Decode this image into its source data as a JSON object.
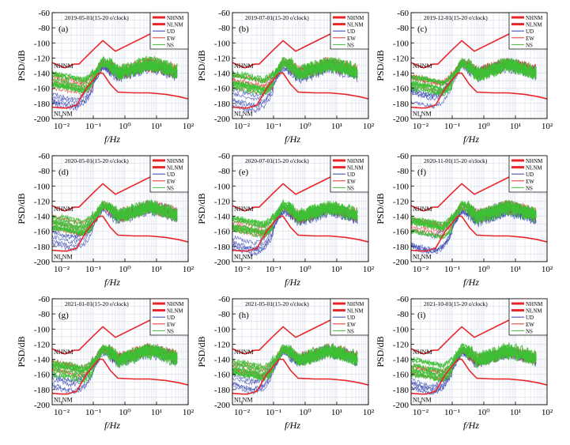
{
  "colors": {
    "nhnm": "#e8262a",
    "nlnm": "#e8262a",
    "ud": "#2f3fb0",
    "ew": "#e0302a",
    "ns": "#3dbf35",
    "grid": "#d8dcea",
    "axis": "#000000"
  },
  "chart_data": [
    {
      "type": "line",
      "panel": "(a)",
      "title": "2019-05-01(15-20 o'clock)",
      "xlabel": "f/Hz",
      "ylabel": "PSD/dB",
      "xscale": "log",
      "xlim": [
        0.005,
        100
      ],
      "ylim": [
        -200,
        -60
      ],
      "xticks": [
        "10⁻²",
        "10⁻¹",
        "10⁰",
        "10¹",
        "10²"
      ],
      "yticks": [
        "-60",
        "-80",
        "-100",
        "-120",
        "-140",
        "-160",
        "-180",
        "-200"
      ],
      "legend": [
        "NHNM",
        "NLNM",
        "UD",
        "EW",
        "NS"
      ],
      "legend_position": "top-right",
      "annotations": [
        "NHNM",
        "NLNM"
      ],
      "seed": 11,
      "grid": true
    },
    {
      "type": "line",
      "panel": "(b)",
      "title": "2019-07-01(15-20 o'clock)",
      "xlabel": "f/Hz",
      "ylabel": "PSD/dB",
      "xscale": "log",
      "xlim": [
        0.005,
        100
      ],
      "ylim": [
        -200,
        -60
      ],
      "xticks": [
        "10⁻²",
        "10⁻¹",
        "10⁰",
        "10¹",
        "10²"
      ],
      "yticks": [
        "-60",
        "-80",
        "-100",
        "-120",
        "-140",
        "-160",
        "-180",
        "-200"
      ],
      "legend": [
        "NHNM",
        "NLNM",
        "UD",
        "EW",
        "NS"
      ],
      "legend_position": "top-right",
      "annotations": [
        "NHNM",
        "NLNM"
      ],
      "seed": 23,
      "grid": true
    },
    {
      "type": "line",
      "panel": "(c)",
      "title": "2019-12-01(15-20 o'clock)",
      "xlabel": "f/Hz",
      "ylabel": "PSD/dB",
      "xscale": "log",
      "xlim": [
        0.005,
        100
      ],
      "ylim": [
        -200,
        -60
      ],
      "xticks": [
        "10⁻²",
        "10⁻¹",
        "10⁰",
        "10¹",
        "10²"
      ],
      "yticks": [
        "-60",
        "-80",
        "-100",
        "-120",
        "-140",
        "-160",
        "-180",
        "-200"
      ],
      "legend": [
        "NHNM",
        "NLNM",
        "UD",
        "EW",
        "NS"
      ],
      "legend_position": "top-right",
      "annotations": [
        "NHNM",
        "NLNM"
      ],
      "seed": 37,
      "grid": true
    },
    {
      "type": "line",
      "panel": "(d)",
      "title": "2020-05-01(15-20 o'clock)",
      "xlabel": "f/Hz",
      "ylabel": "PSD/dB",
      "xscale": "log",
      "xlim": [
        0.005,
        100
      ],
      "ylim": [
        -200,
        -60
      ],
      "xticks": [
        "10⁻²",
        "10⁻¹",
        "10⁰",
        "10¹",
        "10²"
      ],
      "yticks": [
        "-60",
        "-80",
        "-100",
        "-120",
        "-140",
        "-160",
        "-180",
        "-200"
      ],
      "legend": [
        "NHNM",
        "NLNM",
        "UD",
        "EW",
        "NS"
      ],
      "legend_position": "top-right",
      "annotations": [
        "NHNM",
        "NLNM"
      ],
      "seed": 41,
      "grid": true
    },
    {
      "type": "line",
      "panel": "(e)",
      "title": "2020-07-01(15-20 o'clock)",
      "xlabel": "f/Hz",
      "ylabel": "PSD/dB",
      "xscale": "log",
      "xlim": [
        0.005,
        100
      ],
      "ylim": [
        -200,
        -60
      ],
      "xticks": [
        "10⁻²",
        "10⁻¹",
        "10⁰",
        "10¹",
        "10²"
      ],
      "yticks": [
        "-60",
        "-80",
        "-100",
        "-120",
        "-140",
        "-160",
        "-180",
        "-200"
      ],
      "legend": [
        "NHNM",
        "NLNM",
        "UD",
        "EW",
        "NS"
      ],
      "legend_position": "top-right",
      "annotations": [
        "NHNM",
        "NLNM"
      ],
      "seed": 53,
      "grid": true
    },
    {
      "type": "line",
      "panel": "(f)",
      "title": "2020-11-01(15-20 o'clock)",
      "xlabel": "f/Hz",
      "ylabel": "PSD/dB",
      "xscale": "log",
      "xlim": [
        0.005,
        100
      ],
      "ylim": [
        -200,
        -60
      ],
      "xticks": [
        "10⁻²",
        "10⁻¹",
        "10⁰",
        "10¹",
        "10²"
      ],
      "yticks": [
        "-60",
        "-80",
        "-100",
        "-120",
        "-140",
        "-160",
        "-180",
        "-200"
      ],
      "legend": [
        "NHNM",
        "NLNM",
        "UD",
        "EW",
        "NS"
      ],
      "legend_position": "top-right",
      "annotations": [
        "NHNM",
        "NLNM"
      ],
      "seed": 67,
      "grid": true
    },
    {
      "type": "line",
      "panel": "(g)",
      "title": "2021-01-01(15-20 o'clock)",
      "xlabel": "f/Hz",
      "ylabel": "PSD/dB",
      "xscale": "log",
      "xlim": [
        0.005,
        100
      ],
      "ylim": [
        -200,
        -60
      ],
      "xticks": [
        "10⁻²",
        "10⁻¹",
        "10⁰",
        "10¹",
        "10²"
      ],
      "yticks": [
        "-60",
        "-80",
        "-100",
        "-120",
        "-140",
        "-160",
        "-180",
        "-200"
      ],
      "legend": [
        "NHNM",
        "NLNM",
        "UD",
        "EW",
        "NS"
      ],
      "legend_position": "top-right",
      "annotations": [
        "NHNM",
        "NLNM"
      ],
      "seed": 79,
      "grid": true
    },
    {
      "type": "line",
      "panel": "(h)",
      "title": "2021-05-01(15-20 o'clock)",
      "xlabel": "f/Hz",
      "ylabel": "PSD/dB",
      "xscale": "log",
      "xlim": [
        0.005,
        100
      ],
      "ylim": [
        -200,
        -60
      ],
      "xticks": [
        "10⁻²",
        "10⁻¹",
        "10⁰",
        "10¹",
        "10²"
      ],
      "yticks": [
        "-60",
        "-80",
        "-100",
        "-120",
        "-140",
        "-160",
        "-180",
        "-200"
      ],
      "legend": [
        "NHNM",
        "NLNM",
        "UD",
        "EW",
        "NS"
      ],
      "legend_position": "top-right",
      "annotations": [
        "NHNM",
        "NLNM"
      ],
      "seed": 83,
      "grid": true
    },
    {
      "type": "line",
      "panel": "(i)",
      "title": "2021-10-01(15-20 o'clock)",
      "xlabel": "f/Hz",
      "ylabel": "PSD/dB",
      "xscale": "log",
      "xlim": [
        0.005,
        100
      ],
      "ylim": [
        -200,
        -60
      ],
      "xticks": [
        "10⁻²",
        "10⁻¹",
        "10⁰",
        "10¹",
        "10²"
      ],
      "yticks": [
        "-60",
        "-80",
        "-100",
        "-120",
        "-140",
        "-160",
        "-180",
        "-200"
      ],
      "legend": [
        "NHNM",
        "NLNM",
        "UD",
        "EW",
        "NS"
      ],
      "legend_position": "top-right",
      "annotations": [
        "NHNM",
        "NLNM"
      ],
      "seed": 97,
      "grid": true
    }
  ],
  "noise_models": {
    "nhnm": {
      "freq_hz": [
        0.005,
        0.0125,
        0.0125,
        0.025,
        0.035,
        0.1,
        0.2,
        0.5,
        0.5,
        10
      ],
      "psd_db": [
        -126,
        -133,
        -133,
        -128,
        -128,
        -109,
        -97,
        -111,
        -111,
        -84
      ]
    },
    "nlnm": {
      "freq_hz": [
        0.005,
        0.01,
        0.015,
        0.03,
        0.06,
        0.15,
        0.2,
        0.35,
        0.6,
        2,
        6,
        20,
        50,
        100
      ],
      "psd_db": [
        -185,
        -186,
        -186,
        -182,
        -160,
        -140,
        -140,
        -155,
        -165,
        -166,
        -166,
        -168,
        -171,
        -174
      ]
    }
  },
  "spectra_envelope": {
    "freq_hz": [
      0.005,
      0.012,
      0.025,
      0.05,
      0.08,
      0.12,
      0.2,
      0.35,
      0.6,
      1,
      2,
      5,
      10,
      20,
      40
    ],
    "ns_db": [
      -150,
      -152,
      -155,
      -158,
      -152,
      -140,
      -125,
      -130,
      -140,
      -138,
      -134,
      -128,
      -130,
      -134,
      -138
    ],
    "ew_db": [
      -150,
      -153,
      -156,
      -158,
      -152,
      -140,
      -126,
      -131,
      -140,
      -138,
      -134,
      -128,
      -130,
      -133,
      -137
    ],
    "ud_db": [
      -170,
      -175,
      -178,
      -172,
      -160,
      -145,
      -130,
      -135,
      -143,
      -140,
      -136,
      -130,
      -132,
      -135,
      -140
    ]
  }
}
